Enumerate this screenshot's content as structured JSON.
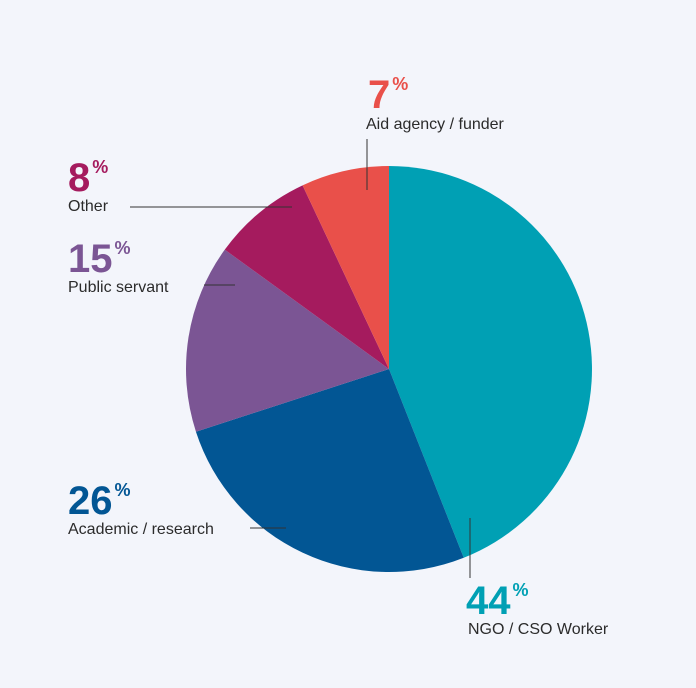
{
  "chart_data": {
    "type": "pie",
    "start_angle_deg": 0,
    "direction": "clockwise",
    "slices": [
      {
        "label": "NGO / CSO Worker",
        "value": 44,
        "value_text": "44",
        "unit": "%",
        "color": "#00a0b4"
      },
      {
        "label": "Academic / research",
        "value": 26,
        "value_text": "26",
        "unit": "%",
        "color": "#025694"
      },
      {
        "label": "Public servant",
        "value": 15,
        "value_text": "15",
        "unit": "%",
        "color": "#7b5594"
      },
      {
        "label": "Other",
        "value": 8,
        "value_text": "8",
        "unit": "%",
        "color": "#a51b5e"
      },
      {
        "label": "Aid agency / funder",
        "value": 7,
        "value_text": "7",
        "unit": "%",
        "color": "#e9504a"
      }
    ]
  },
  "colors": {
    "background": "#f3f5fb",
    "label_text": "#2b2b2b",
    "leader_line": "#333333"
  }
}
